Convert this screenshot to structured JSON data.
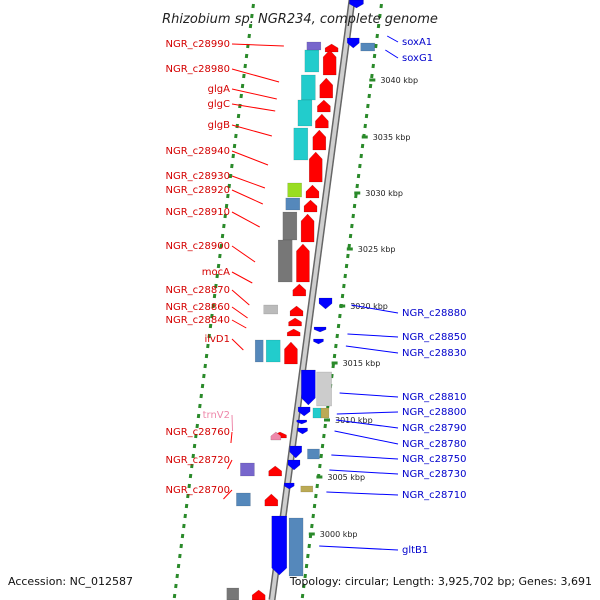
{
  "title": "Rhizobium sp. NGR234, complete genome",
  "footer": {
    "accession": "Accession: NC_012587",
    "topology": "Topology: circular; Length: 3,925,702 bp; Genes: 3,691"
  },
  "ticks": [
    "3040 kbp",
    "3035 kbp",
    "3030 kbp",
    "3025 kbp",
    "3020 kbp",
    "3015 kbp",
    "3010 kbp",
    "3005 kbp",
    "3000 kbp"
  ],
  "left_labels": [
    "NGR_c28990",
    "NGR_c28980",
    "glgA",
    "glgC",
    "glgB",
    "NGR_c28940",
    "NGR_c28930",
    "NGR_c28920",
    "NGR_c28910",
    "NGR_c28900",
    "mocA",
    "NGR_c28870",
    "NGR_c28860",
    "NGR_c28840",
    "ilvD1",
    "trnV2",
    "NGR_c28760",
    "NGR_c28720",
    "NGR_c28700"
  ],
  "right_labels": [
    "soxA1",
    "soxG1",
    "NGR_c28880",
    "NGR_c28850",
    "NGR_c28830",
    "NGR_c28810",
    "NGR_c28800",
    "NGR_c28790",
    "NGR_c28780",
    "NGR_c28750",
    "NGR_c28730",
    "NGR_c28710",
    "gltB1"
  ],
  "colors": {
    "forward_cds": "#ff0000",
    "reverse_cds": "#0000ff",
    "cyan_feature": "#22cccc",
    "grey_feature": "#777777",
    "steel_feature": "#5588bb",
    "lime_feature": "#99dd22",
    "purple_feature": "#7766cc",
    "trna": "#ee88aa",
    "backbone": "#999999",
    "gc_dots": "#2a8a2a"
  }
}
